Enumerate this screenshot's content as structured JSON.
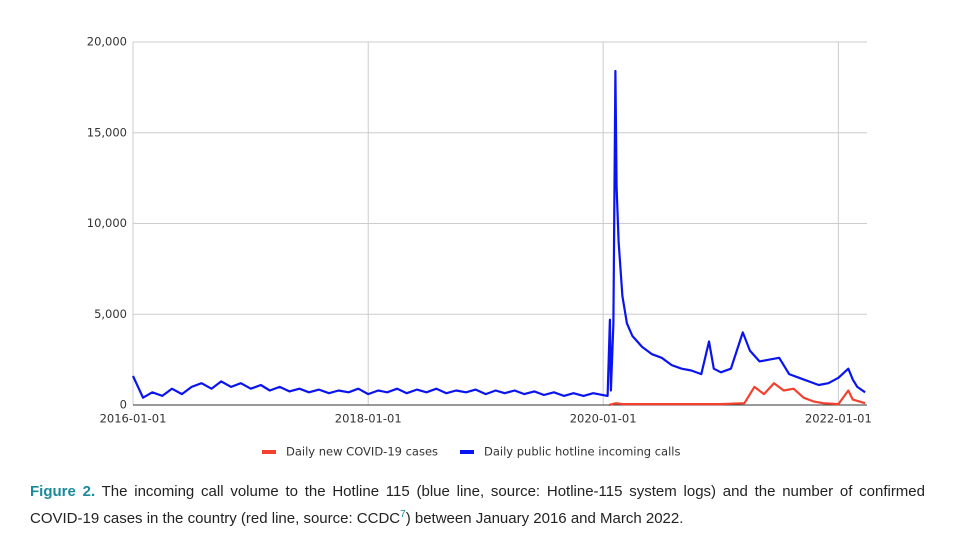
{
  "chart_data": {
    "type": "line",
    "xlim": [
      "2016-01-01",
      "2022-03-31"
    ],
    "xticks": [
      "2016-01-01",
      "2018-01-01",
      "2020-01-01",
      "2022-01-01"
    ],
    "ylim": [
      0,
      20000
    ],
    "yticks": [
      0,
      {
        "value": 5000,
        "label": "5,000"
      },
      {
        "value": 10000,
        "label": "10,000"
      },
      {
        "value": 15000,
        "label": "15,000"
      },
      {
        "value": 20000,
        "label": "20,000"
      }
    ],
    "grid": true,
    "legend": "bottom",
    "series": [
      {
        "name": "Daily new COVID-19 cases",
        "color": "#f4412f",
        "x": [
          "2020-01-20",
          "2020-02-10",
          "2020-03-01",
          "2021-01-01",
          "2021-03-15",
          "2021-04-15",
          "2021-05-15",
          "2021-06-15",
          "2021-07-15",
          "2021-08-15",
          "2021-09-15",
          "2021-10-15",
          "2021-11-15",
          "2022-01-01",
          "2022-02-01",
          "2022-02-15",
          "2022-03-25"
        ],
        "values": [
          0,
          100,
          50,
          50,
          100,
          1000,
          600,
          1200,
          800,
          900,
          400,
          200,
          100,
          50,
          800,
          300,
          100
        ]
      },
      {
        "name": "Daily public hotline incoming calls",
        "color": "#0a14f0",
        "x": [
          "2016-01-01",
          "2016-02-01",
          "2016-03-01",
          "2016-04-01",
          "2016-05-01",
          "2016-06-01",
          "2016-07-01",
          "2016-08-01",
          "2016-09-01",
          "2016-10-01",
          "2016-11-01",
          "2016-12-01",
          "2017-01-01",
          "2017-02-01",
          "2017-03-01",
          "2017-04-01",
          "2017-05-01",
          "2017-06-01",
          "2017-07-01",
          "2017-08-01",
          "2017-09-01",
          "2017-10-01",
          "2017-11-01",
          "2017-12-01",
          "2018-01-01",
          "2018-02-01",
          "2018-03-01",
          "2018-04-01",
          "2018-05-01",
          "2018-06-01",
          "2018-07-01",
          "2018-08-01",
          "2018-09-01",
          "2018-10-01",
          "2018-11-01",
          "2018-12-01",
          "2019-01-01",
          "2019-02-01",
          "2019-03-01",
          "2019-04-01",
          "2019-05-01",
          "2019-06-01",
          "2019-07-01",
          "2019-08-01",
          "2019-09-01",
          "2019-10-01",
          "2019-11-01",
          "2019-12-01",
          "2020-01-15",
          "2020-01-22",
          "2020-01-25",
          "2020-02-02",
          "2020-02-08",
          "2020-02-12",
          "2020-02-18",
          "2020-03-01",
          "2020-03-15",
          "2020-04-01",
          "2020-05-01",
          "2020-06-01",
          "2020-07-01",
          "2020-08-01",
          "2020-09-01",
          "2020-10-01",
          "2020-11-01",
          "2020-11-25",
          "2020-12-10",
          "2021-01-01",
          "2021-02-01",
          "2021-03-10",
          "2021-04-01",
          "2021-05-01",
          "2021-06-01",
          "2021-07-01",
          "2021-08-01",
          "2021-09-01",
          "2021-10-01",
          "2021-11-01",
          "2021-12-01",
          "2022-01-01",
          "2022-02-01",
          "2022-02-15",
          "2022-03-01",
          "2022-03-25"
        ],
        "values": [
          1600,
          400,
          700,
          500,
          900,
          600,
          1000,
          1200,
          900,
          1300,
          1000,
          1200,
          900,
          1100,
          800,
          1000,
          750,
          900,
          700,
          850,
          650,
          800,
          700,
          900,
          600,
          800,
          700,
          900,
          650,
          850,
          700,
          900,
          650,
          800,
          700,
          850,
          600,
          800,
          650,
          800,
          600,
          750,
          550,
          700,
          500,
          650,
          500,
          650,
          500,
          4700,
          800,
          4500,
          18400,
          12000,
          9000,
          6000,
          4500,
          3800,
          3200,
          2800,
          2600,
          2200,
          2000,
          1900,
          1700,
          3500,
          2000,
          1800,
          2000,
          4000,
          3000,
          2400,
          2500,
          2600,
          1700,
          1500,
          1300,
          1100,
          1200,
          1500,
          2000,
          1400,
          1000,
          700
        ]
      }
    ]
  },
  "caption": {
    "label": "Figure 2.",
    "text_before": "The incoming call volume to the Hotline 115 (blue line, source: Hotline-115 system logs) and the number of confirmed COVID-19 cases in the country (red line, source: CCDC",
    "ref": "7",
    "text_after": ") between January 2016 and March 2022."
  }
}
